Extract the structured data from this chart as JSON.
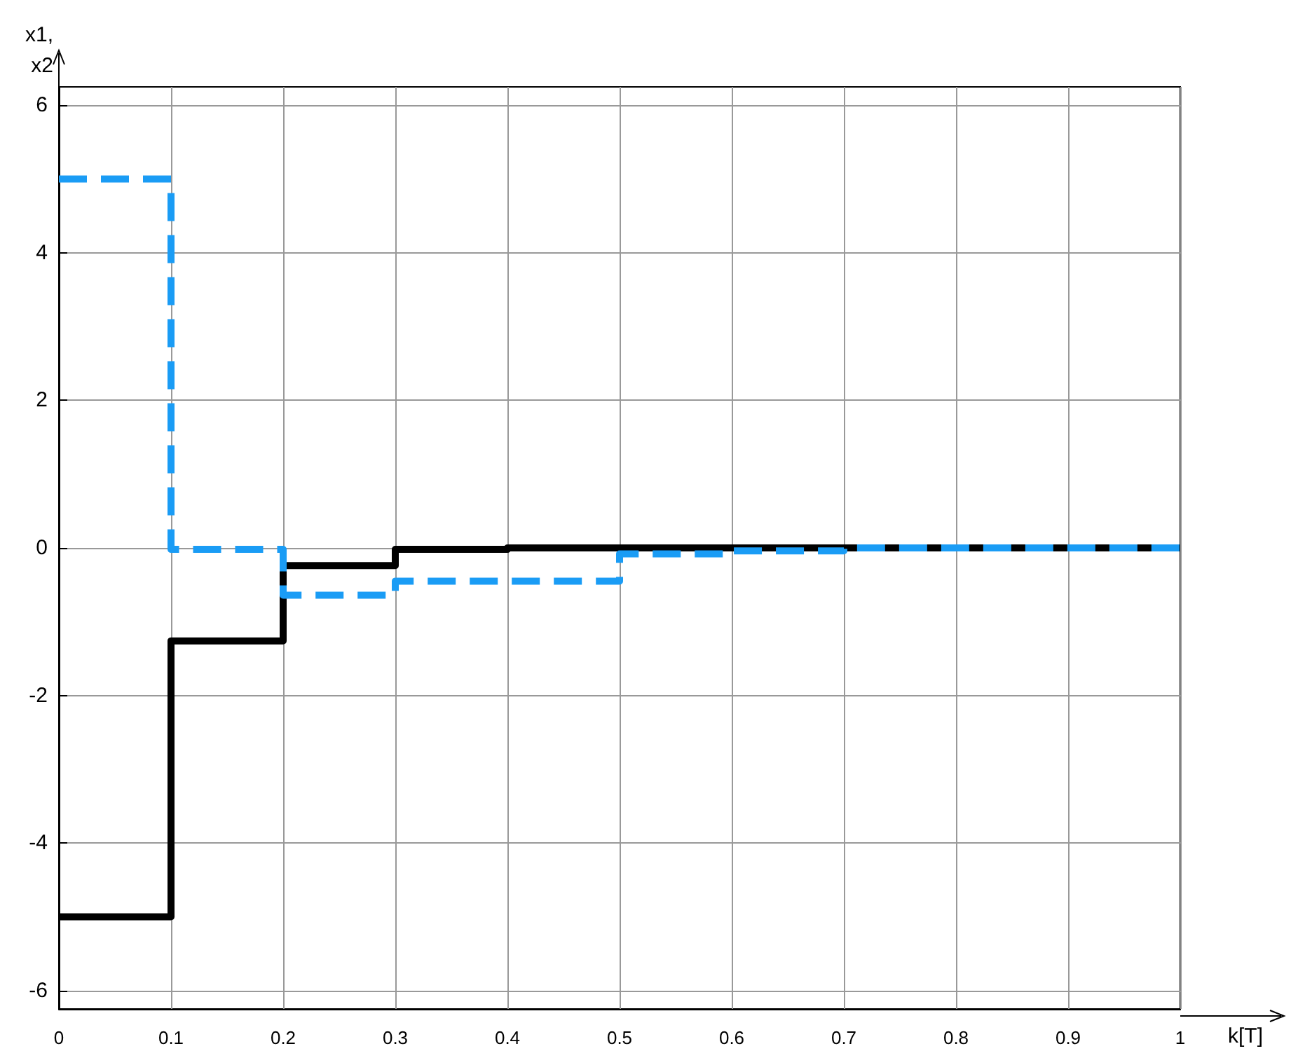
{
  "chart_data": {
    "type": "step",
    "xlabel": "k[T]",
    "ylabel": "x1,\nx2",
    "x": [
      0,
      0.1,
      0.2,
      0.3,
      0.4,
      0.5,
      0.6,
      0.7,
      0.8,
      0.9,
      1
    ],
    "series": [
      {
        "color": "#000000",
        "line_style": "solid",
        "values": [
          -5,
          -1.26,
          -0.24,
          -0.02,
          0,
          0,
          0,
          0,
          0,
          0,
          0
        ]
      },
      {
        "color": "#1a9cf5",
        "line_style": "dashed",
        "values": [
          5,
          -0.02,
          -0.64,
          -0.45,
          -0.45,
          -0.08,
          -0.04,
          0,
          0,
          0,
          0
        ]
      }
    ],
    "xlim": [
      0,
      1
    ],
    "xticks": [
      0,
      0.1,
      0.2,
      0.3,
      0.4,
      0.5,
      0.6,
      0.7,
      0.8,
      0.9,
      1
    ],
    "ylim": [
      -6.25,
      6.25
    ],
    "yticks": [
      -6,
      -4,
      -2,
      0,
      2,
      4,
      6
    ],
    "grid": true,
    "marker": "none"
  }
}
